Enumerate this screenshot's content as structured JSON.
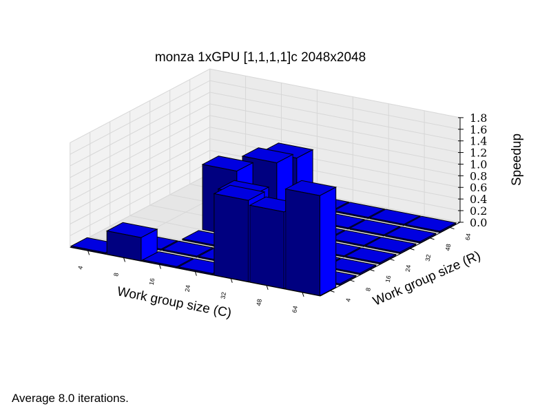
{
  "chart_data": {
    "type": "bar3d",
    "title": "monza 1xGPU [1,1,1,1]c 2048x2048",
    "xlabel": "Work group size (C)",
    "ylabel": "Work group size (R)",
    "zlabel": "Speedup",
    "x_ticks": [
      "64",
      "48",
      "32",
      "24",
      "16",
      "8",
      "4"
    ],
    "y_ticks": [
      "4",
      "8",
      "16",
      "24",
      "32",
      "48",
      "64"
    ],
    "z_ticks": [
      "0.0",
      "0.2",
      "0.4",
      "0.6",
      "0.8",
      "1.0",
      "1.2",
      "1.4",
      "1.6",
      "1.8"
    ],
    "zlim": [
      0,
      1.8
    ],
    "bar_color": "#0000ff",
    "bars": [
      {
        "c": "64",
        "r": "4",
        "speedup": 1.72
      },
      {
        "c": "48",
        "r": "4",
        "speedup": 1.32
      },
      {
        "c": "32",
        "r": "4",
        "speedup": 1.4
      },
      {
        "c": "24",
        "r": "4",
        "speedup": 0.02
      },
      {
        "c": "16",
        "r": "4",
        "speedup": 0.02
      },
      {
        "c": "8",
        "r": "4",
        "speedup": 0.4
      },
      {
        "c": "4",
        "r": "4",
        "speedup": 0.02
      },
      {
        "c": "64",
        "r": "8",
        "speedup": 0.02
      },
      {
        "c": "48",
        "r": "8",
        "speedup": 0.02
      },
      {
        "c": "32",
        "r": "8",
        "speedup": 0.02
      },
      {
        "c": "24",
        "r": "8",
        "speedup": 0.02
      },
      {
        "c": "16",
        "r": "8",
        "speedup": 0.02
      },
      {
        "c": "8",
        "r": "8",
        "speedup": 0.02
      },
      {
        "c": "64",
        "r": "16",
        "speedup": 0.02
      },
      {
        "c": "48",
        "r": "16",
        "speedup": 0.02
      },
      {
        "c": "32",
        "r": "16",
        "speedup": 0.02
      },
      {
        "c": "24",
        "r": "16",
        "speedup": 1.0
      },
      {
        "c": "16",
        "r": "16",
        "speedup": 0.02
      },
      {
        "c": "64",
        "r": "24",
        "speedup": 0.02
      },
      {
        "c": "48",
        "r": "24",
        "speedup": 0.02
      },
      {
        "c": "32",
        "r": "24",
        "speedup": 0.02
      },
      {
        "c": "24",
        "r": "24",
        "speedup": 0.02
      },
      {
        "c": "16",
        "r": "24",
        "speedup": 1.12
      },
      {
        "c": "64",
        "r": "32",
        "speedup": 0.02
      },
      {
        "c": "48",
        "r": "32",
        "speedup": 0.02
      },
      {
        "c": "32",
        "r": "32",
        "speedup": 0.02
      },
      {
        "c": "24",
        "r": "32",
        "speedup": 0.02
      },
      {
        "c": "16",
        "r": "32",
        "speedup": 0.02
      },
      {
        "c": "64",
        "r": "48",
        "speedup": 0.02
      },
      {
        "c": "48",
        "r": "48",
        "speedup": 0.02
      },
      {
        "c": "32",
        "r": "48",
        "speedup": 0.02
      },
      {
        "c": "24",
        "r": "48",
        "speedup": 0.02
      },
      {
        "c": "16",
        "r": "48",
        "speedup": 0.9
      },
      {
        "c": "64",
        "r": "64",
        "speedup": 0.02
      },
      {
        "c": "48",
        "r": "64",
        "speedup": 0.02
      },
      {
        "c": "32",
        "r": "64",
        "speedup": 0.02
      },
      {
        "c": "24",
        "r": "64",
        "speedup": 0.02
      },
      {
        "c": "16",
        "r": "64",
        "speedup": 0.8
      }
    ]
  },
  "footnote": "Average 8.0 iterations."
}
